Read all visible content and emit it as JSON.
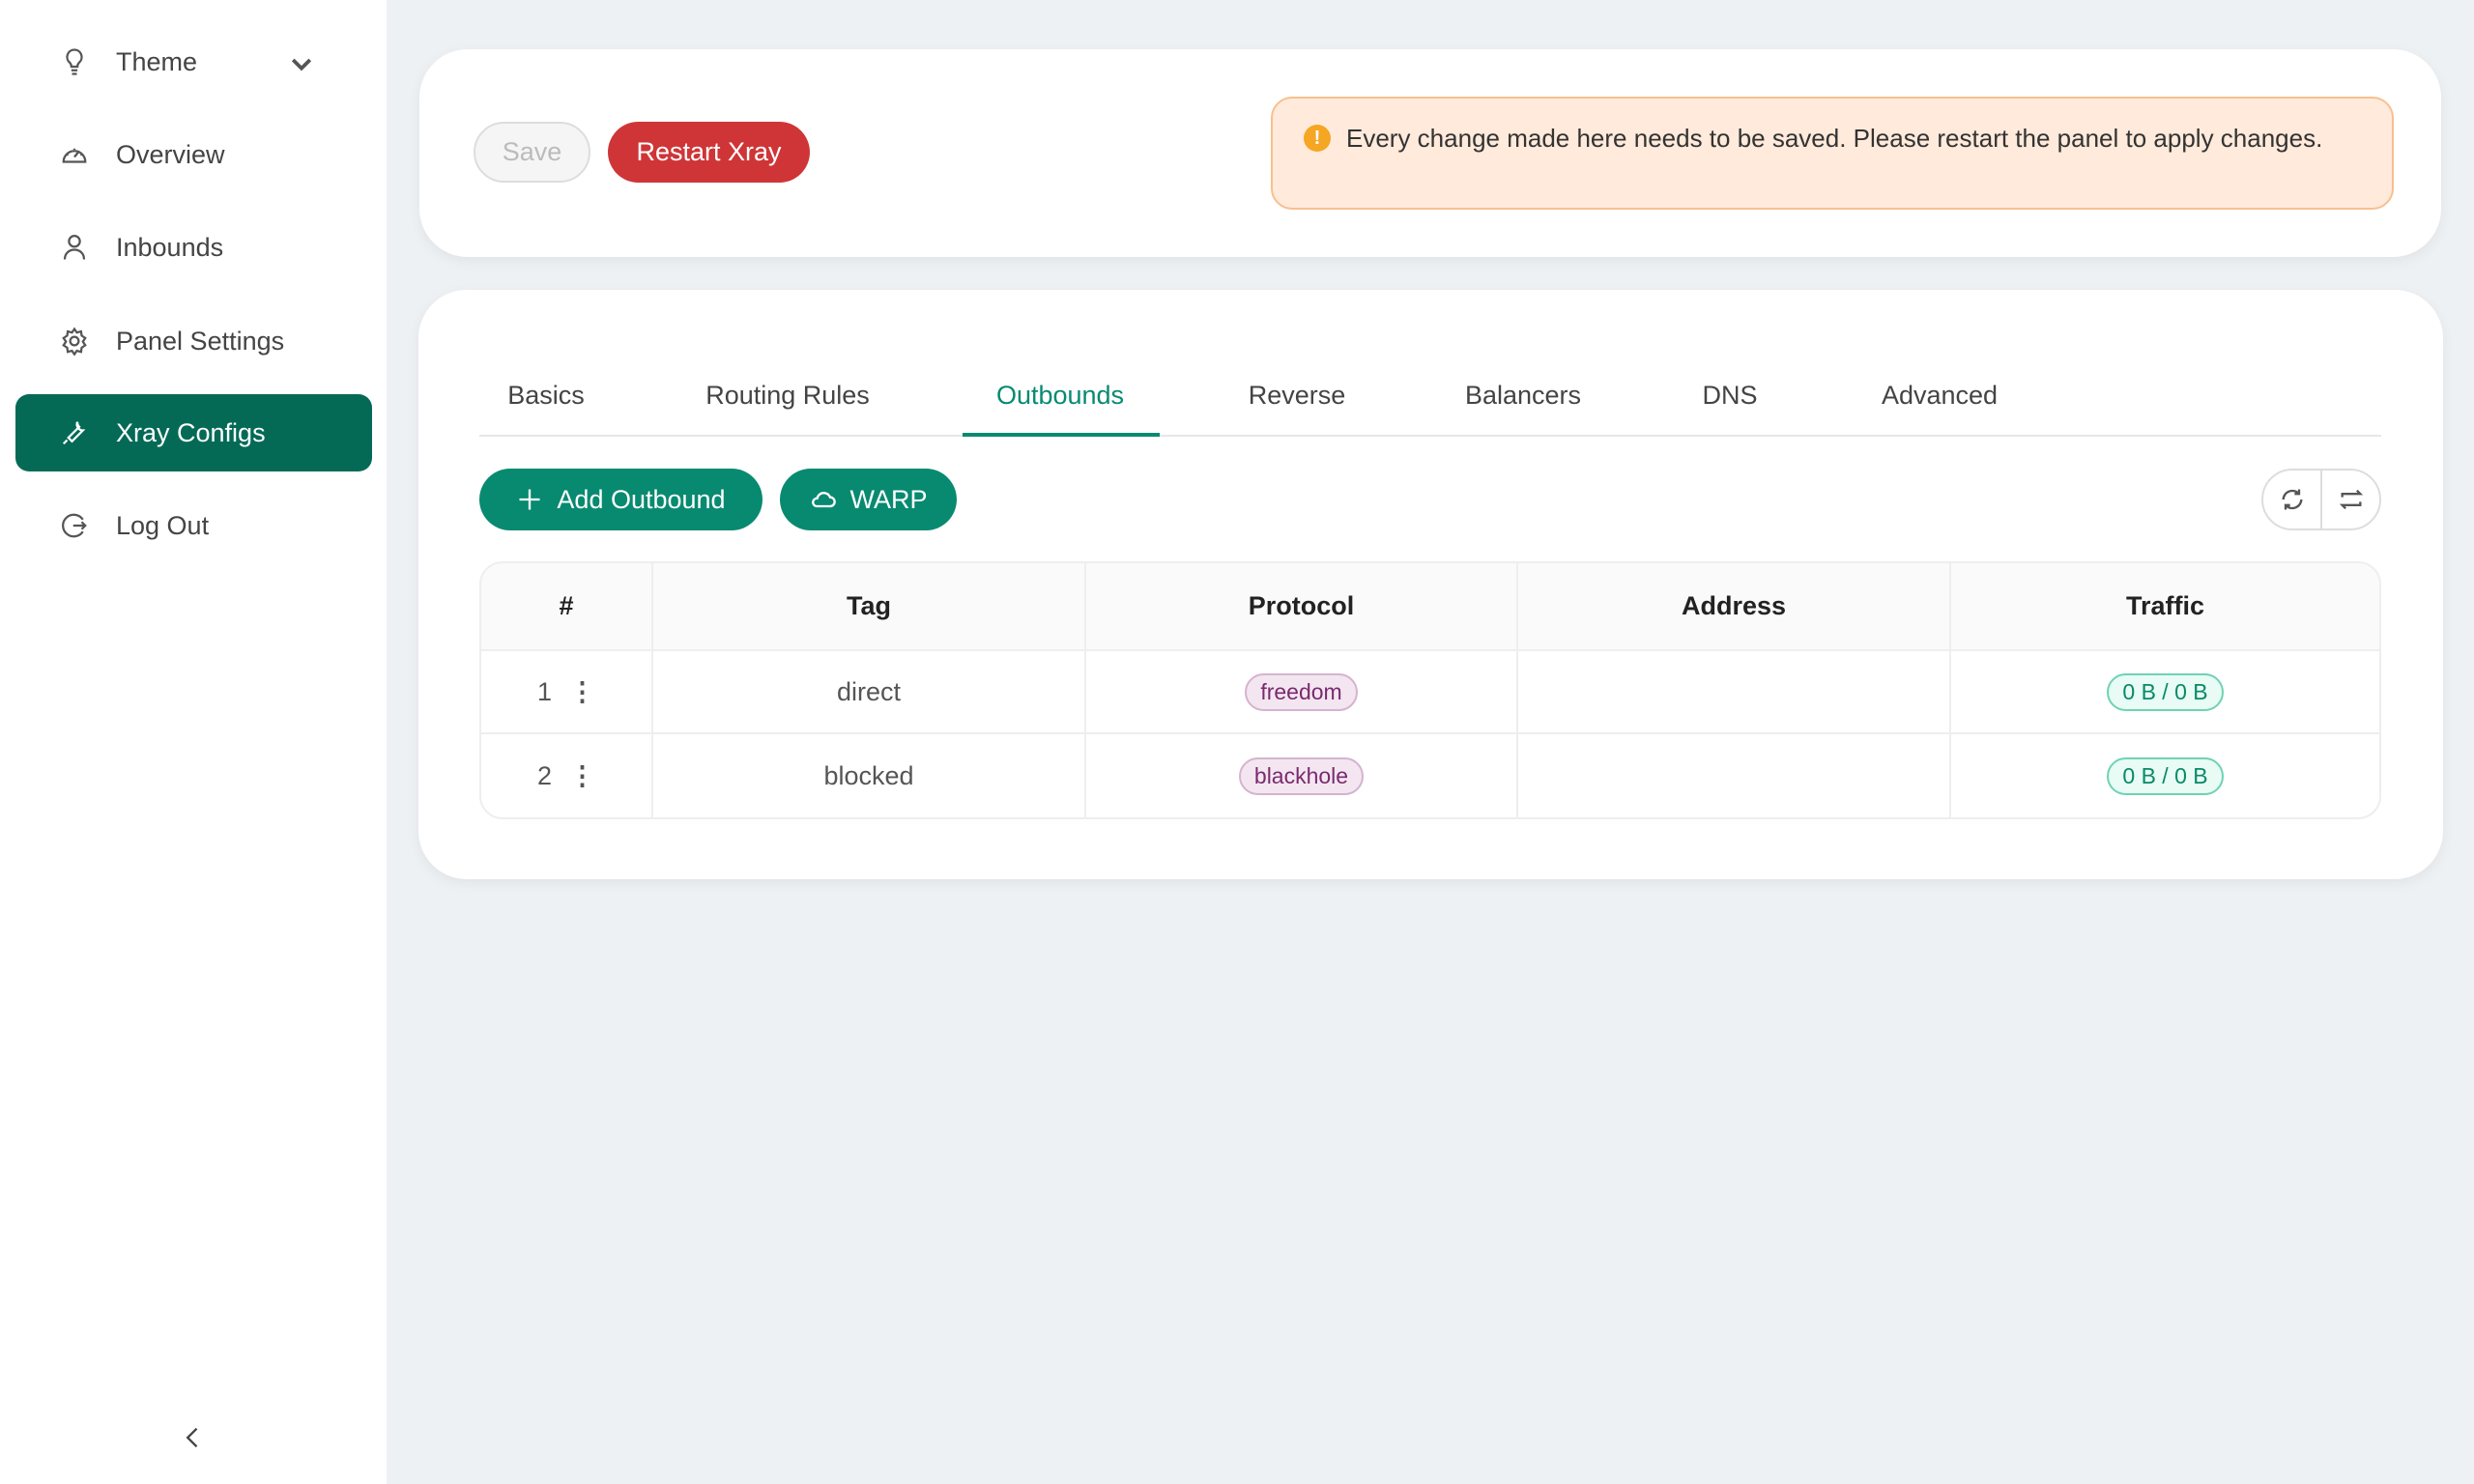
{
  "sidebar": {
    "items": [
      {
        "label": "Theme",
        "icon": "bulb-icon"
      },
      {
        "label": "Overview",
        "icon": "dashboard-icon"
      },
      {
        "label": "Inbounds",
        "icon": "user-icon"
      },
      {
        "label": "Panel Settings",
        "icon": "gear-icon"
      },
      {
        "label": "Xray Configs",
        "icon": "wrench-icon",
        "active": true
      },
      {
        "label": "Log Out",
        "icon": "logout-icon"
      }
    ]
  },
  "toolbar": {
    "save_label": "Save",
    "restart_label": "Restart Xray"
  },
  "alert": {
    "text": "Every change made here needs to be saved. Please restart the panel to apply changes."
  },
  "tabs": [
    "Basics",
    "Routing Rules",
    "Outbounds",
    "Reverse",
    "Balancers",
    "DNS",
    "Advanced"
  ],
  "active_tab": "Outbounds",
  "actions": {
    "add_outbound": "Add Outbound",
    "warp": "WARP"
  },
  "table": {
    "headers": [
      "#",
      "Tag",
      "Protocol",
      "Address",
      "Traffic"
    ],
    "rows": [
      {
        "num": "1",
        "tag": "direct",
        "protocol": "freedom",
        "address": "",
        "traffic": "0 B / 0 B"
      },
      {
        "num": "2",
        "tag": "blocked",
        "protocol": "blackhole",
        "address": "",
        "traffic": "0 B / 0 B"
      }
    ]
  },
  "colors": {
    "accent": "#078a70",
    "sidebar_active": "#046a56",
    "danger": "#cf3537",
    "alert_bg": "#ffeadb"
  }
}
